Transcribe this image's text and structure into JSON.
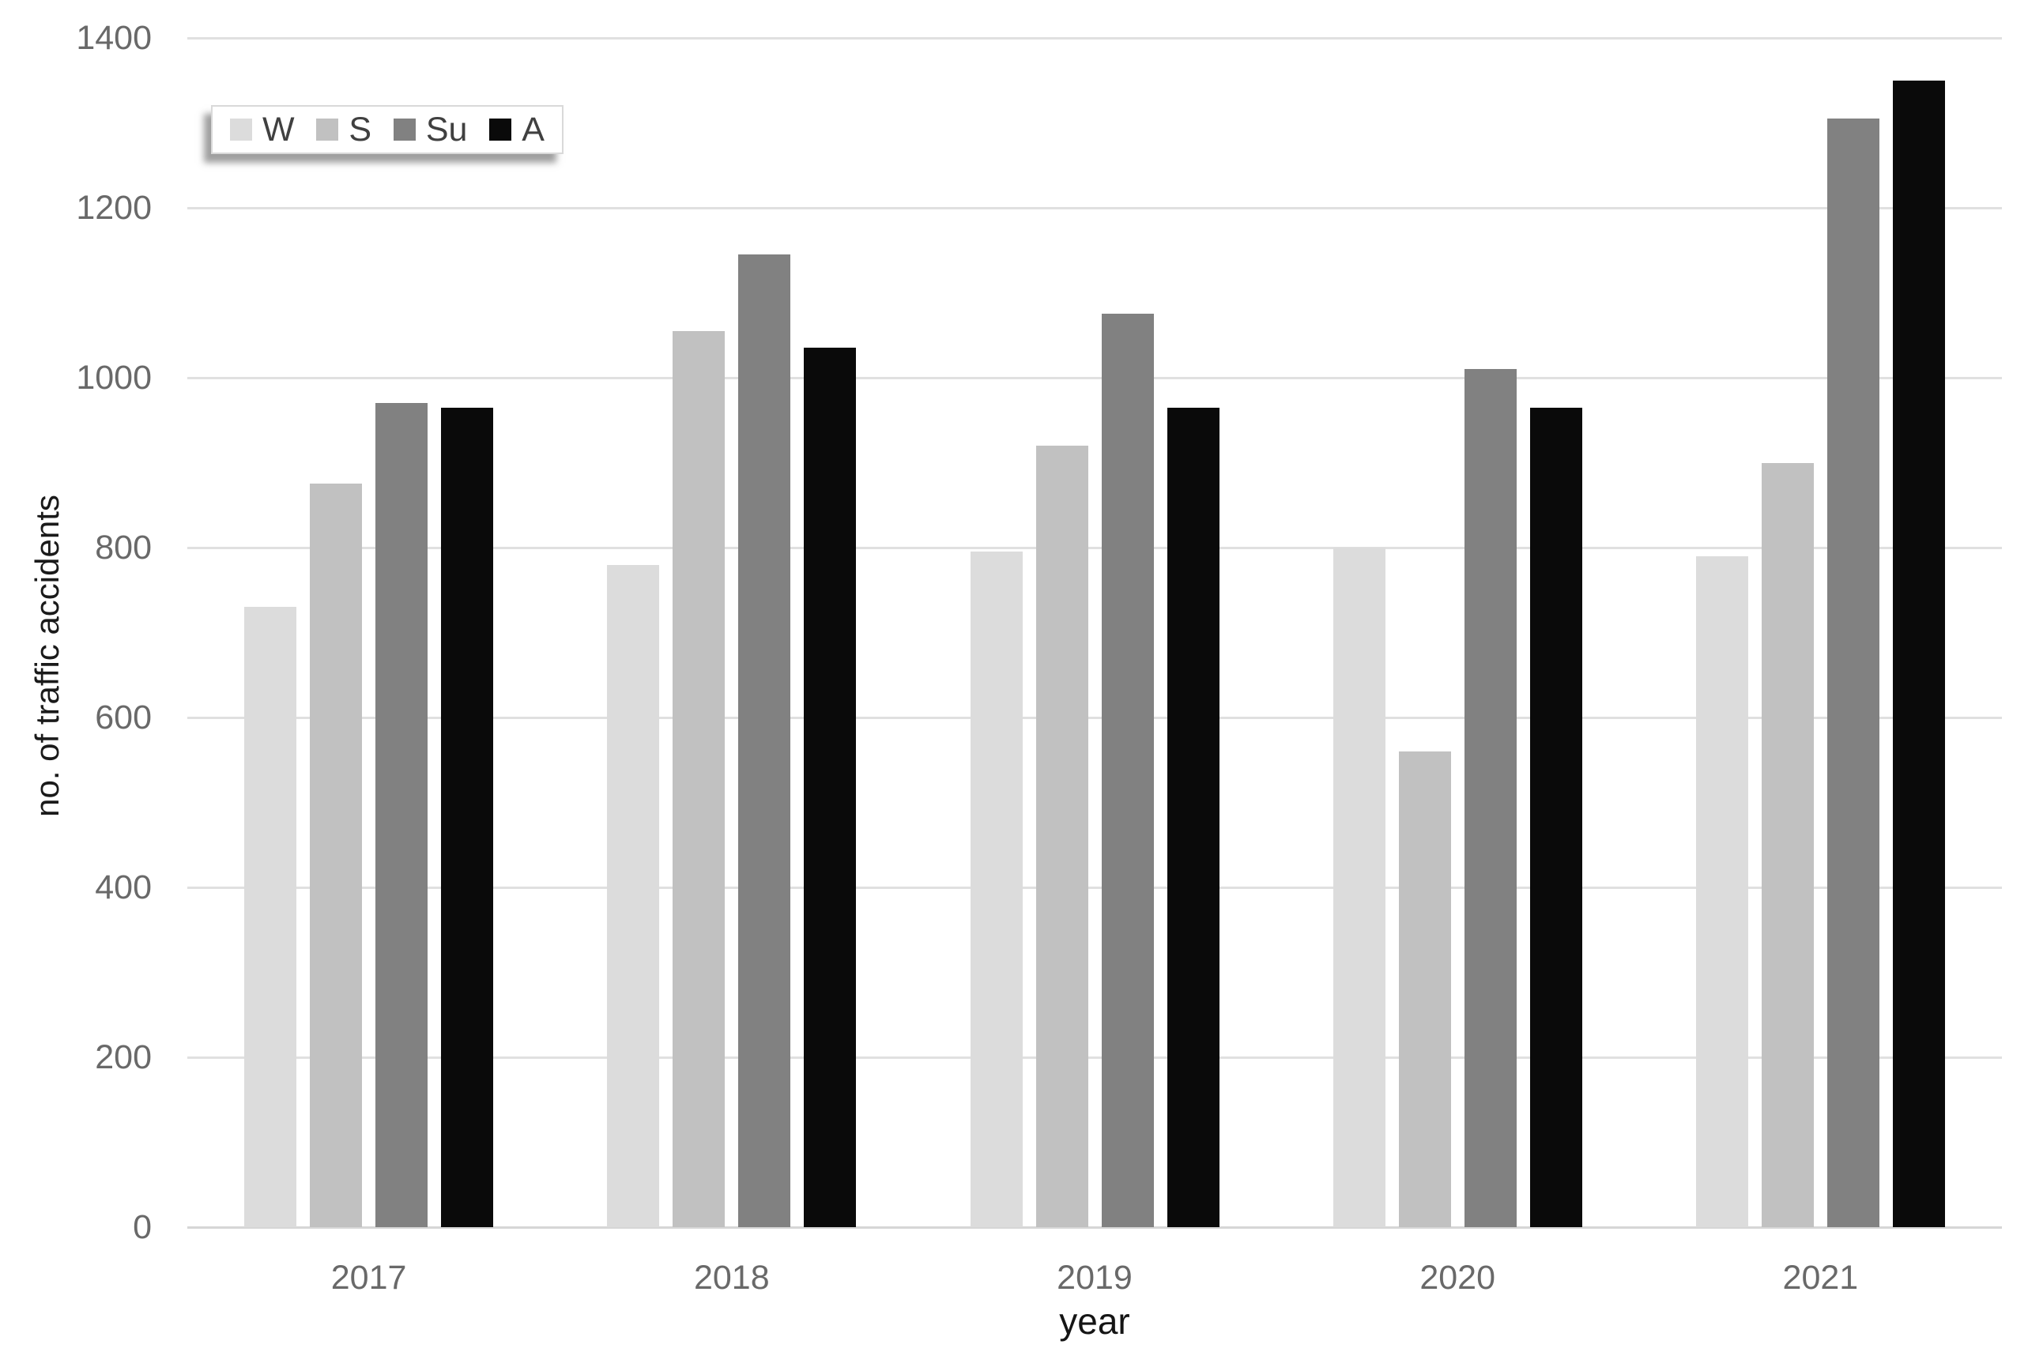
{
  "chart_data": {
    "type": "bar",
    "title": "",
    "categories": [
      "2017",
      "2018",
      "2019",
      "2020",
      "2021"
    ],
    "series": [
      {
        "name": "W",
        "color": "#dcdcdc",
        "values": [
          730,
          780,
          795,
          800,
          790
        ]
      },
      {
        "name": "S",
        "color": "#c1c1c1",
        "values": [
          875,
          1055,
          920,
          560,
          900
        ]
      },
      {
        "name": "Su",
        "color": "#818181",
        "values": [
          970,
          1145,
          1075,
          1010,
          1305
        ]
      },
      {
        "name": "A",
        "color": "#0a0a0a",
        "values": [
          965,
          1035,
          965,
          965,
          1350
        ]
      }
    ],
    "xlabel": "year",
    "ylabel": "no. of traffic accidents",
    "ylim": [
      0,
      1400
    ],
    "ytick_step": 200,
    "ytick_labels": [
      "0",
      "200",
      "400",
      "600",
      "800",
      "1000",
      "1200",
      "1400"
    ],
    "grid": true,
    "legend_position": "top-left",
    "legend_labels": [
      "W",
      "S",
      "Su",
      "A"
    ]
  },
  "colors": {
    "background": "#ffffff",
    "gridline": "#e0e0e0",
    "axis_line": "#d6d6d6",
    "tick_label": "#696969",
    "axis_title": "#1a1a1a",
    "legend_text": "#404040",
    "legend_border": "#d9d9d9"
  }
}
